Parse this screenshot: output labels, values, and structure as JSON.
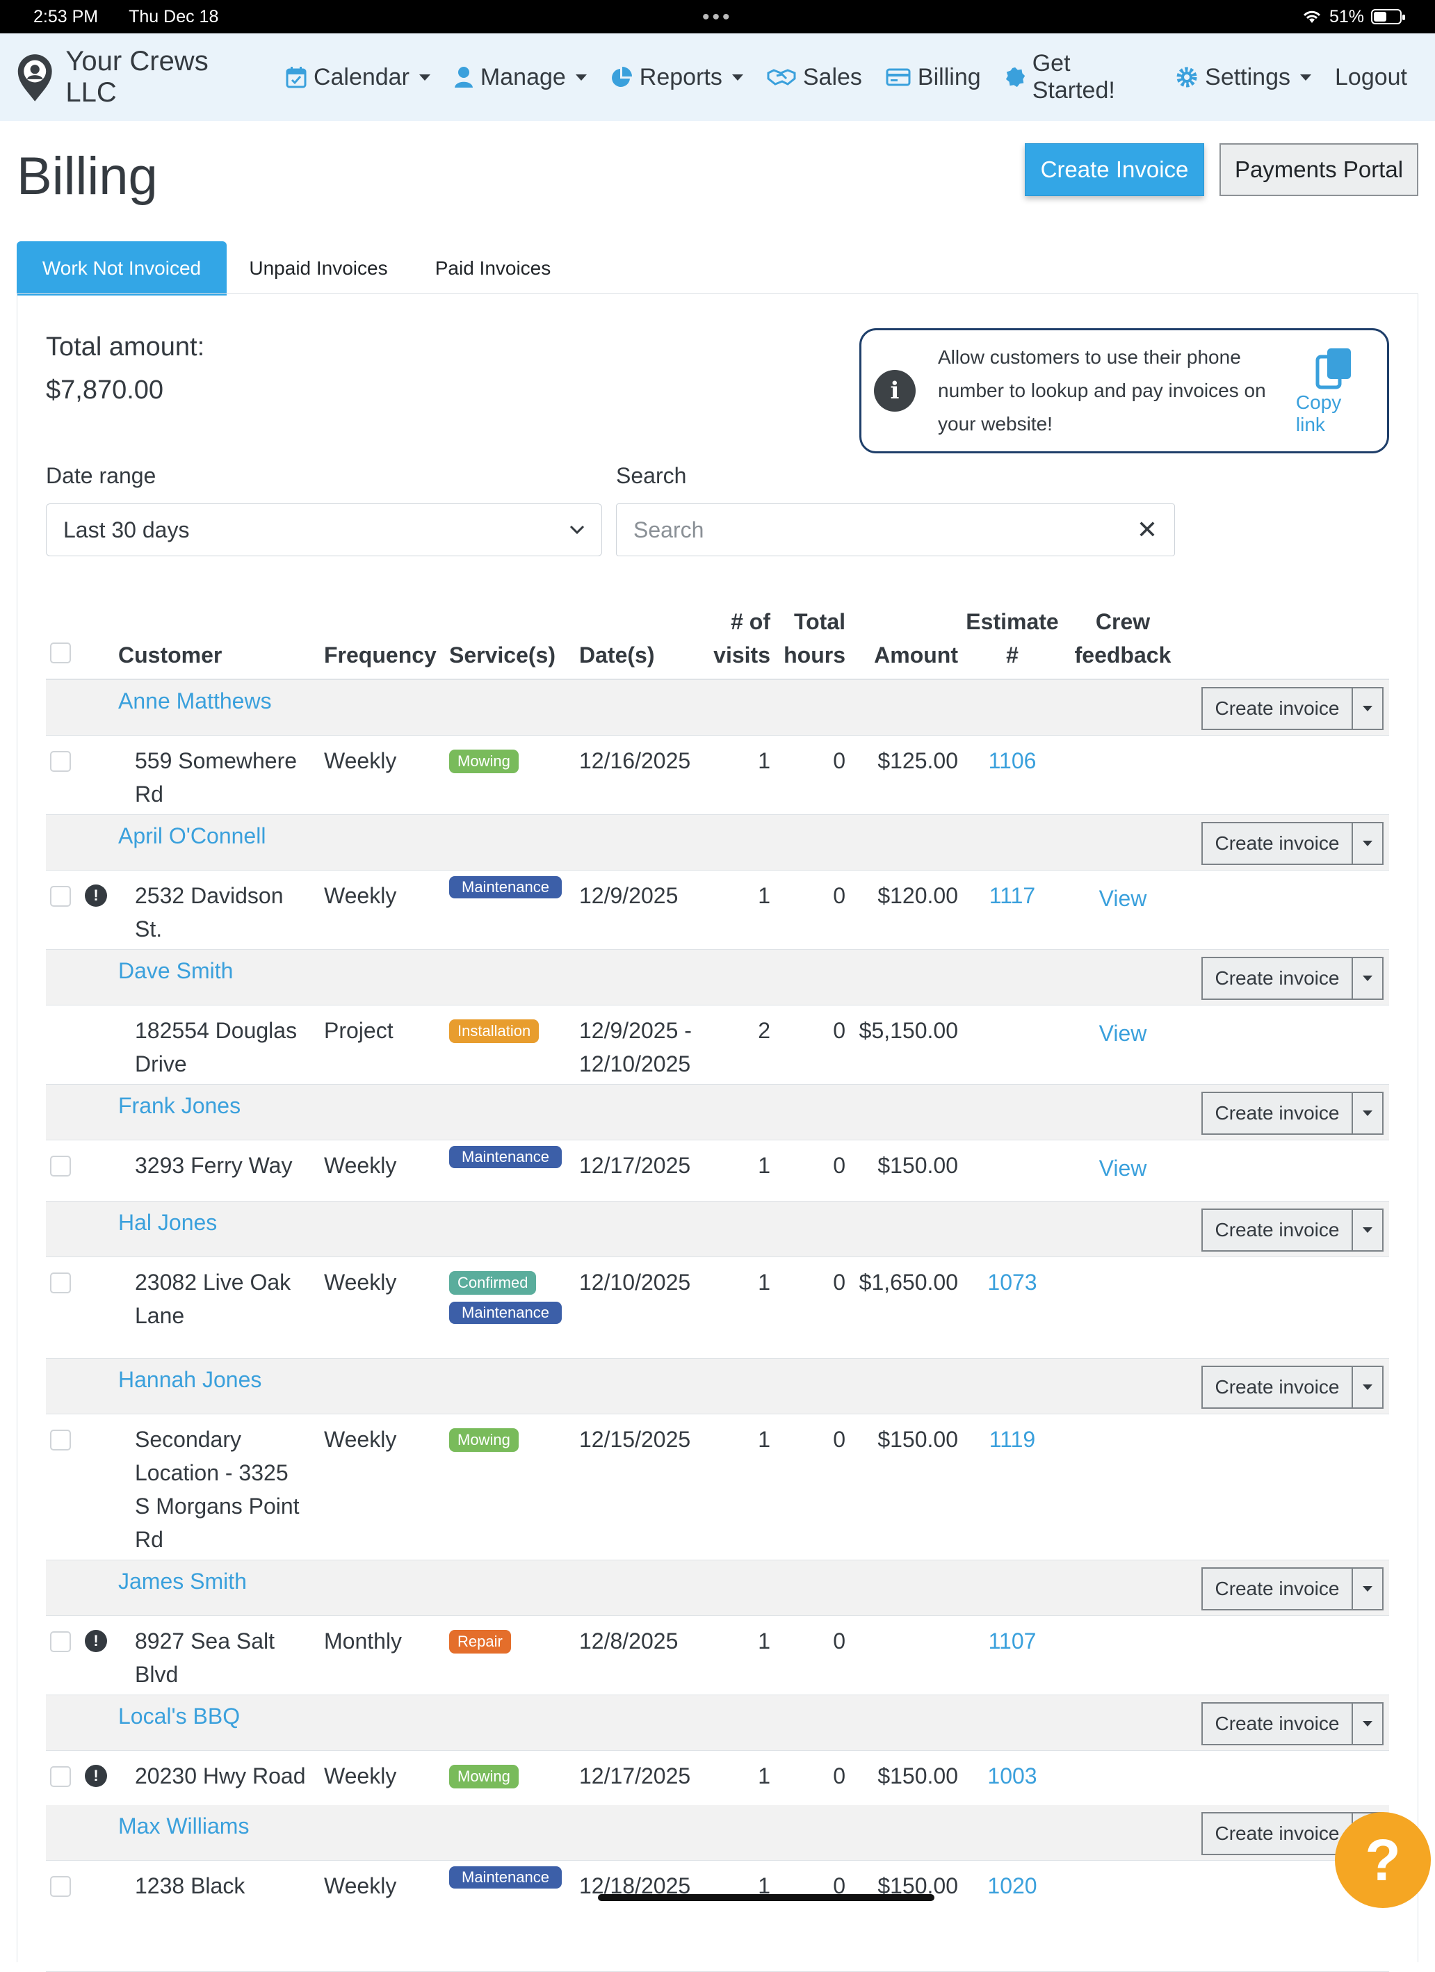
{
  "status": {
    "time": "2:53 PM",
    "date": "Thu Dec 18",
    "battery": "51%",
    "battery_level": 0.51
  },
  "brand": {
    "name": "Your Crews LLC"
  },
  "nav": {
    "calendar": "Calendar",
    "manage": "Manage",
    "reports": "Reports",
    "sales": "Sales",
    "billing": "Billing",
    "get_started": "Get Started!",
    "settings": "Settings",
    "logout": "Logout"
  },
  "page": {
    "title": "Billing",
    "create_invoice": "Create Invoice",
    "payments_portal": "Payments Portal"
  },
  "tabs": [
    "Work Not Invoiced",
    "Unpaid Invoices",
    "Paid Invoices"
  ],
  "summary": {
    "total_label": "Total amount:",
    "total_value": "$7,870.00"
  },
  "info": {
    "message": "Allow customers to use their phone number to lookup and pay invoices on your website!",
    "copy_link": "Copy link"
  },
  "filters": {
    "date_range_label": "Date range",
    "date_range_value": "Last 30 days",
    "search_label": "Search",
    "search_placeholder": "Search"
  },
  "table": {
    "headers": {
      "customer": "Customer",
      "frequency": "Frequency",
      "services": "Service(s)",
      "dates": "Date(s)",
      "visits_1": "# of",
      "visits_2": "visits",
      "hours_1": "Total",
      "hours_2": "hours",
      "amount": "Amount",
      "estimate_1": "Estimate",
      "estimate_2": "#",
      "feedback_1": "Crew",
      "feedback_2": "feedback"
    },
    "row_button": "Create invoice",
    "groups": [
      {
        "customer": "Anne Matthews",
        "address1": "559 Somewhere",
        "address2": "Rd",
        "address3": "",
        "address4": "",
        "frequency": "Weekly",
        "service1": "Mowing",
        "service2": "",
        "date1": "12/16/2025",
        "date2": "",
        "visits": "1",
        "hours": "0",
        "amount": "$125.00",
        "estimate": "1106",
        "feedback": ""
      },
      {
        "customer": "April O'Connell",
        "address1": "2532 Davidson",
        "address2": "St.",
        "address3": "",
        "address4": "",
        "frequency": "Weekly",
        "service1": "Maintenance",
        "service2": "",
        "date1": "12/9/2025",
        "date2": "",
        "visits": "1",
        "hours": "0",
        "amount": "$120.00",
        "estimate": "1117",
        "feedback": "View"
      },
      {
        "customer": "Dave Smith",
        "address1": "182554 Douglas",
        "address2": "Drive",
        "address3": "",
        "address4": "",
        "frequency": "Project",
        "service1": "Installation",
        "service2": "",
        "date1": "12/9/2025 -",
        "date2": "12/10/2025",
        "visits": "2",
        "hours": "0",
        "amount": "$5,150.00",
        "estimate": "",
        "feedback": "View"
      },
      {
        "customer": "Frank Jones",
        "address1": "3293 Ferry Way",
        "address2": "",
        "address3": "",
        "address4": "",
        "frequency": "Weekly",
        "service1": "Maintenance",
        "service2": "",
        "date1": "12/17/2025",
        "date2": "",
        "visits": "1",
        "hours": "0",
        "amount": "$150.00",
        "estimate": "",
        "feedback": "View"
      },
      {
        "customer": "Hal Jones",
        "address1": "23082 Live Oak",
        "address2": "Lane",
        "address3": "",
        "address4": "",
        "frequency": "Weekly",
        "service1": "Confirmed",
        "service2": "Maintenance",
        "date1": "12/10/2025",
        "date2": "",
        "visits": "1",
        "hours": "0",
        "amount": "$1,650.00",
        "estimate": "1073",
        "feedback": ""
      },
      {
        "customer": "Hannah Jones",
        "address1": "Secondary",
        "address2": "Location - 3325",
        "address3": "S Morgans Point",
        "address4": "Rd",
        "frequency": "Weekly",
        "service1": "Mowing",
        "service2": "",
        "date1": "12/15/2025",
        "date2": "",
        "visits": "1",
        "hours": "0",
        "amount": "$150.00",
        "estimate": "1119",
        "feedback": ""
      },
      {
        "customer": "James Smith",
        "address1": "8927 Sea Salt",
        "address2": "Blvd",
        "address3": "",
        "address4": "",
        "frequency": "Monthly",
        "service1": "Repair",
        "service2": "",
        "date1": "12/8/2025",
        "date2": "",
        "visits": "1",
        "hours": "0",
        "amount": "",
        "estimate": "1107",
        "feedback": ""
      },
      {
        "customer": "Local's BBQ",
        "address1": "20230 Hwy Road",
        "address2": "",
        "address3": "",
        "address4": "",
        "frequency": "Weekly",
        "service1": "Mowing",
        "service2": "",
        "date1": "12/17/2025",
        "date2": "",
        "visits": "1",
        "hours": "0",
        "amount": "$150.00",
        "estimate": "1003",
        "feedback": ""
      },
      {
        "customer": "Max Williams",
        "address1": "1238 Black",
        "address2": "",
        "address3": "",
        "address4": "",
        "frequency": "Weekly",
        "service1": "Maintenance",
        "service2": "",
        "date1": "12/18/2025",
        "date2": "",
        "visits": "1",
        "hours": "0",
        "amount": "$150.00",
        "estimate": "1020",
        "feedback": ""
      }
    ]
  },
  "help": {
    "label": "?"
  }
}
